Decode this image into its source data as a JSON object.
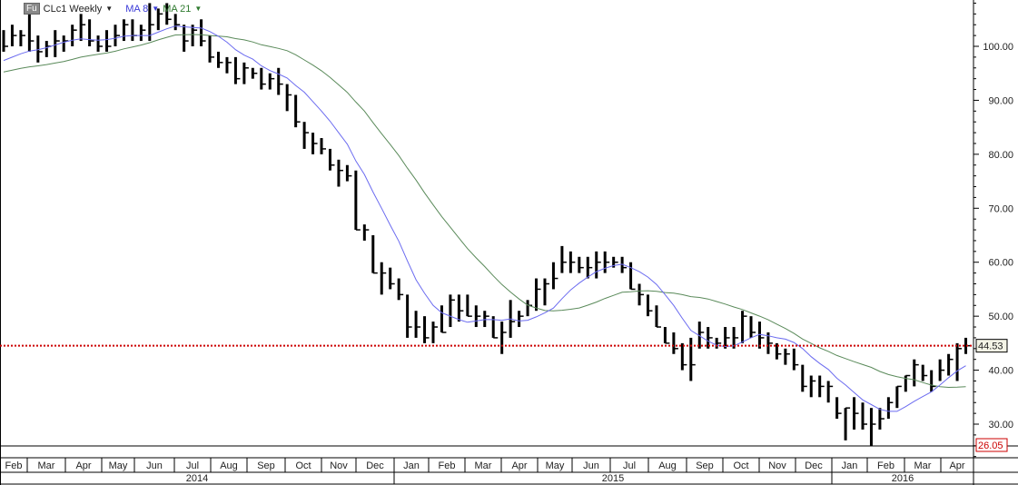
{
  "legend": {
    "badge": "Fu",
    "symbol": "CLc1 Weekly",
    "ma_fast": "MA 8",
    "ma_slow": "MA 21"
  },
  "colors": {
    "bars": "#000000",
    "ma_fast": "#6b6bf0",
    "ma_slow": "#5a8a5a",
    "last_price_line": "#cc0000",
    "low_label": "#cc0000"
  },
  "chart_data": {
    "type": "ohlc-bar",
    "title": "CLc1 Weekly",
    "ylim": [
      24,
      108
    ],
    "yticks": [
      30,
      40,
      50,
      60,
      70,
      80,
      90,
      100
    ],
    "ytick_labels": [
      "30.00",
      "40.00",
      "50.00",
      "60.00",
      "70.00",
      "80.00",
      "90.00",
      "100.00"
    ],
    "last_price": 44.53,
    "last_price_label": "44.53",
    "low_price": 26.05,
    "low_price_label": "26.05",
    "indicators": [
      "MA 8",
      "MA 21"
    ],
    "months": [
      "Feb",
      "Mar",
      "Apr",
      "May",
      "Jun",
      "Jul",
      "Aug",
      "Sep",
      "Oct",
      "Nov",
      "Dec",
      "Jan",
      "Feb",
      "Mar",
      "Apr",
      "May",
      "Jun",
      "Jul",
      "Aug",
      "Sep",
      "Oct",
      "Nov",
      "Dec",
      "Jan",
      "Feb",
      "Mar",
      "Apr"
    ],
    "years": [
      "2014",
      "2015",
      "2016"
    ],
    "bars_hlc": [
      [
        103,
        99,
        100
      ],
      [
        104,
        100,
        102
      ],
      [
        103,
        100,
        102
      ],
      [
        106,
        99,
        101
      ],
      [
        102,
        97,
        99
      ],
      [
        101,
        98,
        100
      ],
      [
        103,
        98,
        101
      ],
      [
        102,
        99,
        101
      ],
      [
        104,
        100,
        103
      ],
      [
        106,
        101,
        104
      ],
      [
        105,
        100,
        101
      ],
      [
        102,
        99,
        100
      ],
      [
        103,
        99,
        100
      ],
      [
        104,
        100,
        102
      ],
      [
        105,
        101,
        104
      ],
      [
        105,
        101,
        102
      ],
      [
        104,
        101,
        103
      ],
      [
        108,
        101,
        104
      ],
      [
        107,
        103,
        106
      ],
      [
        108,
        104,
        105
      ],
      [
        106,
        103,
        104
      ],
      [
        104,
        99,
        101
      ],
      [
        104,
        100,
        103
      ],
      [
        105,
        100,
        101
      ],
      [
        102,
        97,
        98
      ],
      [
        99,
        96,
        97
      ],
      [
        98,
        95,
        97
      ],
      [
        98,
        93,
        94
      ],
      [
        97,
        93,
        96
      ],
      [
        96,
        94,
        95
      ],
      [
        96,
        92,
        93
      ],
      [
        95,
        92,
        94
      ],
      [
        96,
        91,
        93
      ],
      [
        93,
        88,
        91
      ],
      [
        91,
        85,
        86
      ],
      [
        86,
        81,
        84
      ],
      [
        84,
        80,
        82
      ],
      [
        83,
        80,
        81
      ],
      [
        81,
        77,
        78
      ],
      [
        79,
        74,
        77
      ],
      [
        78,
        75,
        76
      ],
      [
        77,
        66,
        66
      ],
      [
        67,
        64,
        66
      ],
      [
        65,
        58,
        58
      ],
      [
        60,
        54,
        58
      ],
      [
        59,
        55,
        56
      ],
      [
        57,
        53,
        54
      ],
      [
        54,
        46,
        48
      ],
      [
        51,
        46,
        48
      ],
      [
        50,
        45,
        46
      ],
      [
        49,
        45,
        48
      ],
      [
        52,
        47,
        47
      ],
      [
        54,
        48,
        53
      ],
      [
        54,
        49,
        51
      ],
      [
        54,
        50,
        50
      ],
      [
        52,
        48,
        50
      ],
      [
        51,
        48,
        50
      ],
      [
        50,
        46,
        46
      ],
      [
        49,
        43,
        47
      ],
      [
        53,
        46,
        49
      ],
      [
        51,
        48,
        50
      ],
      [
        53,
        50,
        52
      ],
      [
        57,
        51,
        55
      ],
      [
        57,
        52,
        56
      ],
      [
        60,
        55,
        57
      ],
      [
        63,
        58,
        60
      ],
      [
        62,
        58,
        60
      ],
      [
        61,
        58,
        59
      ],
      [
        61,
        57,
        59
      ],
      [
        62,
        57,
        60
      ],
      [
        62,
        58,
        60
      ],
      [
        61,
        59,
        60
      ],
      [
        61,
        58,
        59
      ],
      [
        60,
        55,
        55
      ],
      [
        56,
        52,
        54
      ],
      [
        54,
        50,
        51
      ],
      [
        52,
        48,
        48
      ],
      [
        48,
        45,
        45
      ],
      [
        47,
        43,
        44
      ],
      [
        45,
        40,
        41
      ],
      [
        46,
        38,
        41
      ],
      [
        49,
        44,
        47
      ],
      [
        48,
        44,
        46
      ],
      [
        46,
        44,
        45
      ],
      [
        48,
        44,
        46
      ],
      [
        48,
        44,
        46
      ],
      [
        51,
        45,
        50
      ],
      [
        50,
        46,
        47
      ],
      [
        49,
        44,
        46
      ],
      [
        47,
        43,
        45
      ],
      [
        45,
        42,
        43
      ],
      [
        44,
        41,
        43
      ],
      [
        44,
        40,
        41
      ],
      [
        41,
        36,
        37
      ],
      [
        39,
        35,
        38
      ],
      [
        39,
        35,
        37
      ],
      [
        38,
        34,
        37
      ],
      [
        35,
        31,
        32
      ],
      [
        33,
        27,
        33
      ],
      [
        35,
        29,
        32
      ],
      [
        34,
        29,
        30
      ],
      [
        33,
        26.05,
        30
      ],
      [
        33,
        29,
        31
      ],
      [
        35,
        31,
        34
      ],
      [
        37,
        33,
        37
      ],
      [
        39,
        36,
        39
      ],
      [
        42,
        37,
        41
      ],
      [
        41,
        38,
        39
      ],
      [
        40,
        36,
        37
      ],
      [
        42,
        38,
        40
      ],
      [
        43,
        39,
        42
      ],
      [
        45,
        38,
        44
      ],
      [
        46,
        43,
        44.53
      ]
    ]
  }
}
